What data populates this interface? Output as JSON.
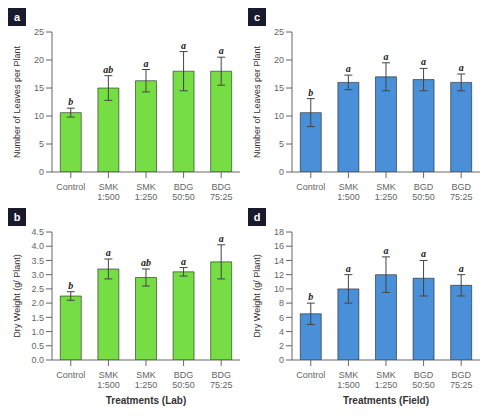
{
  "chart_data": [
    {
      "type": "bar",
      "title": "a",
      "ylabel": "Number of Leaves per Plant",
      "categories": [
        "Control",
        "SMK\n1:500",
        "SMK\n1:250",
        "BDG\n50:50",
        "BDG\n75:25"
      ],
      "values": [
        10.6,
        15.0,
        16.3,
        18.0,
        18.0
      ],
      "errors": [
        0.8,
        2.2,
        2.0,
        3.5,
        2.5
      ],
      "annotations": [
        "b",
        "ab",
        "a",
        "a",
        "a"
      ],
      "ylim": [
        0,
        25
      ],
      "yticks": [
        0,
        5,
        10,
        15,
        20,
        25
      ],
      "color": "#77DD44",
      "grid": false
    },
    {
      "type": "bar",
      "title": "c",
      "ylabel": "Number of Leaves per Plant",
      "categories": [
        "Control",
        "SMK\n1:500",
        "SMK\n1:250",
        "BGD\n50:50",
        "BGD\n75:25"
      ],
      "values": [
        10.6,
        16.0,
        17.0,
        16.5,
        16.0
      ],
      "errors": [
        2.5,
        1.3,
        2.5,
        2.0,
        1.5
      ],
      "annotations": [
        "b",
        "a",
        "a",
        "a",
        "a"
      ],
      "ylim": [
        0,
        25
      ],
      "yticks": [
        0,
        5,
        10,
        15,
        20,
        25
      ],
      "color": "#4A90D9",
      "grid": false
    },
    {
      "type": "bar",
      "title": "b",
      "ylabel": "Dry Weight (g/ Plant)",
      "xlabel": "Treatments (Lab)",
      "categories": [
        "Control",
        "SMK\n1:500",
        "SMK\n1:250",
        "BDG\n50:50",
        "BDG\n75:25"
      ],
      "values": [
        2.25,
        3.2,
        2.9,
        3.1,
        3.45
      ],
      "errors": [
        0.15,
        0.35,
        0.3,
        0.15,
        0.6
      ],
      "annotations": [
        "b",
        "a",
        "ab",
        "a",
        "a"
      ],
      "ylim": [
        0,
        4.5
      ],
      "yticks": [
        {
          "value": 0,
          "label": "0.0"
        },
        0.5,
        {
          "value": 1,
          "label": "1.0"
        },
        1.5,
        {
          "value": 2,
          "label": "2.0"
        },
        2.5,
        {
          "value": 3,
          "label": "3.0"
        },
        3.5,
        {
          "value": 4,
          "label": "4.0"
        },
        4.5
      ],
      "color": "#77DD44",
      "grid": false
    },
    {
      "type": "bar",
      "title": "d",
      "ylabel": "Dry Weight (g/ Plant)",
      "xlabel": "Treatments (Field)",
      "categories": [
        "Control",
        "SMK\n1:500",
        "SMK\n1:250",
        "BGD\n50:50",
        "BGD\n75:25"
      ],
      "values": [
        6.5,
        10.0,
        12.0,
        11.5,
        10.5
      ],
      "errors": [
        1.5,
        2.0,
        2.5,
        2.5,
        1.5
      ],
      "annotations": [
        "b",
        "a",
        "a",
        "a",
        "a"
      ],
      "ylim": [
        0,
        18
      ],
      "yticks": [
        0,
        2,
        4,
        6,
        8,
        10,
        12,
        14,
        16,
        18
      ],
      "color": "#4A90D9",
      "grid": false
    }
  ]
}
